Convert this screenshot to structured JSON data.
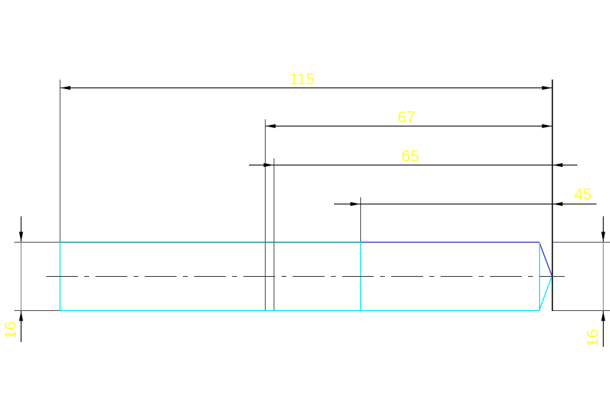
{
  "drawing": {
    "dimensions": {
      "overall_length": "115",
      "length_67": "67",
      "length_65": "65",
      "length_45": "45",
      "diameter_left": "16",
      "diameter_right": "16"
    },
    "colors": {
      "background": "#ffffff",
      "dimension_text": "#ffff33",
      "dimension_line": "#000000",
      "outline_cyan": "#00e5ee",
      "outline_teal": "#008c8c",
      "outline_blue": "#3030c8",
      "centerline": "#404040"
    }
  }
}
